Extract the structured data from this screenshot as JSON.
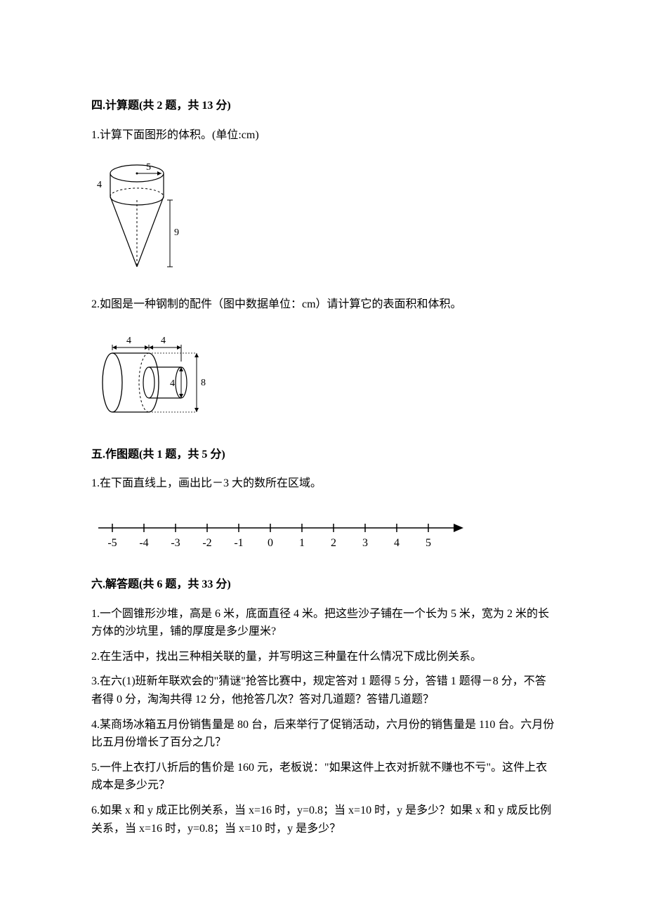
{
  "section4": {
    "header": "四.计算题(共 2 题，共 13 分)",
    "q1": "1.计算下面图形的体积。(单位:cm)",
    "q2": "2.如图是一种钢制的配件（图中数据单位：cm）请计算它的表面积和体积。",
    "fig1": {
      "r_label": "5",
      "h_cyl_label": "4",
      "h_cone_label": "9"
    },
    "fig2": {
      "len1": "4",
      "len2": "4",
      "small_d": "4",
      "big_d": "8"
    }
  },
  "section5": {
    "header": "五.作图题(共 1 题，共 5 分)",
    "q1": "1.在下面直线上，画出比－3 大的数所在区域。",
    "ticks": [
      "-5",
      "-4",
      "-3",
      "-2",
      "-1",
      "0",
      "1",
      "2",
      "3",
      "4",
      "5"
    ]
  },
  "section6": {
    "header": "六.解答题(共 6 题，共 33 分)",
    "q1": "1.一个圆锥形沙堆，高是 6 米，底面直径 4 米。把这些沙子铺在一个长为 5 米，宽为 2 米的长方体的沙坑里，铺的厚度是多少厘米?",
    "q2": "2.在生活中，找出三种相关联的量，并写明这三种量在什么情况下成比例关系。",
    "q3": "3.在六(1)班新年联欢会的\"猜谜\"抢答比赛中，规定答对 1 题得 5 分，答错 1 题得－8 分，不答者得 0 分，淘淘共得 12 分，他抢答几次？答对几道题？答错几道题？",
    "q4": "4.某商场冰箱五月份销售量是 80 台，后来举行了促销活动，六月份的销售量是 110 台。六月份比五月份增长了百分之几？",
    "q5": "5.一件上衣打八折后的售价是 160 元，老板说：\"如果这件上衣对折就不赚也不亏\"。这件上衣成本是多少元？",
    "q6": "6.如果 x 和 y 成正比例关系，当 x=16 时，y=0.8；当 x=10 时，y 是多少？如果 x 和 y 成反比例关系，当 x=16 时，y=0.8；当 x=10 时，y 是多少？"
  }
}
